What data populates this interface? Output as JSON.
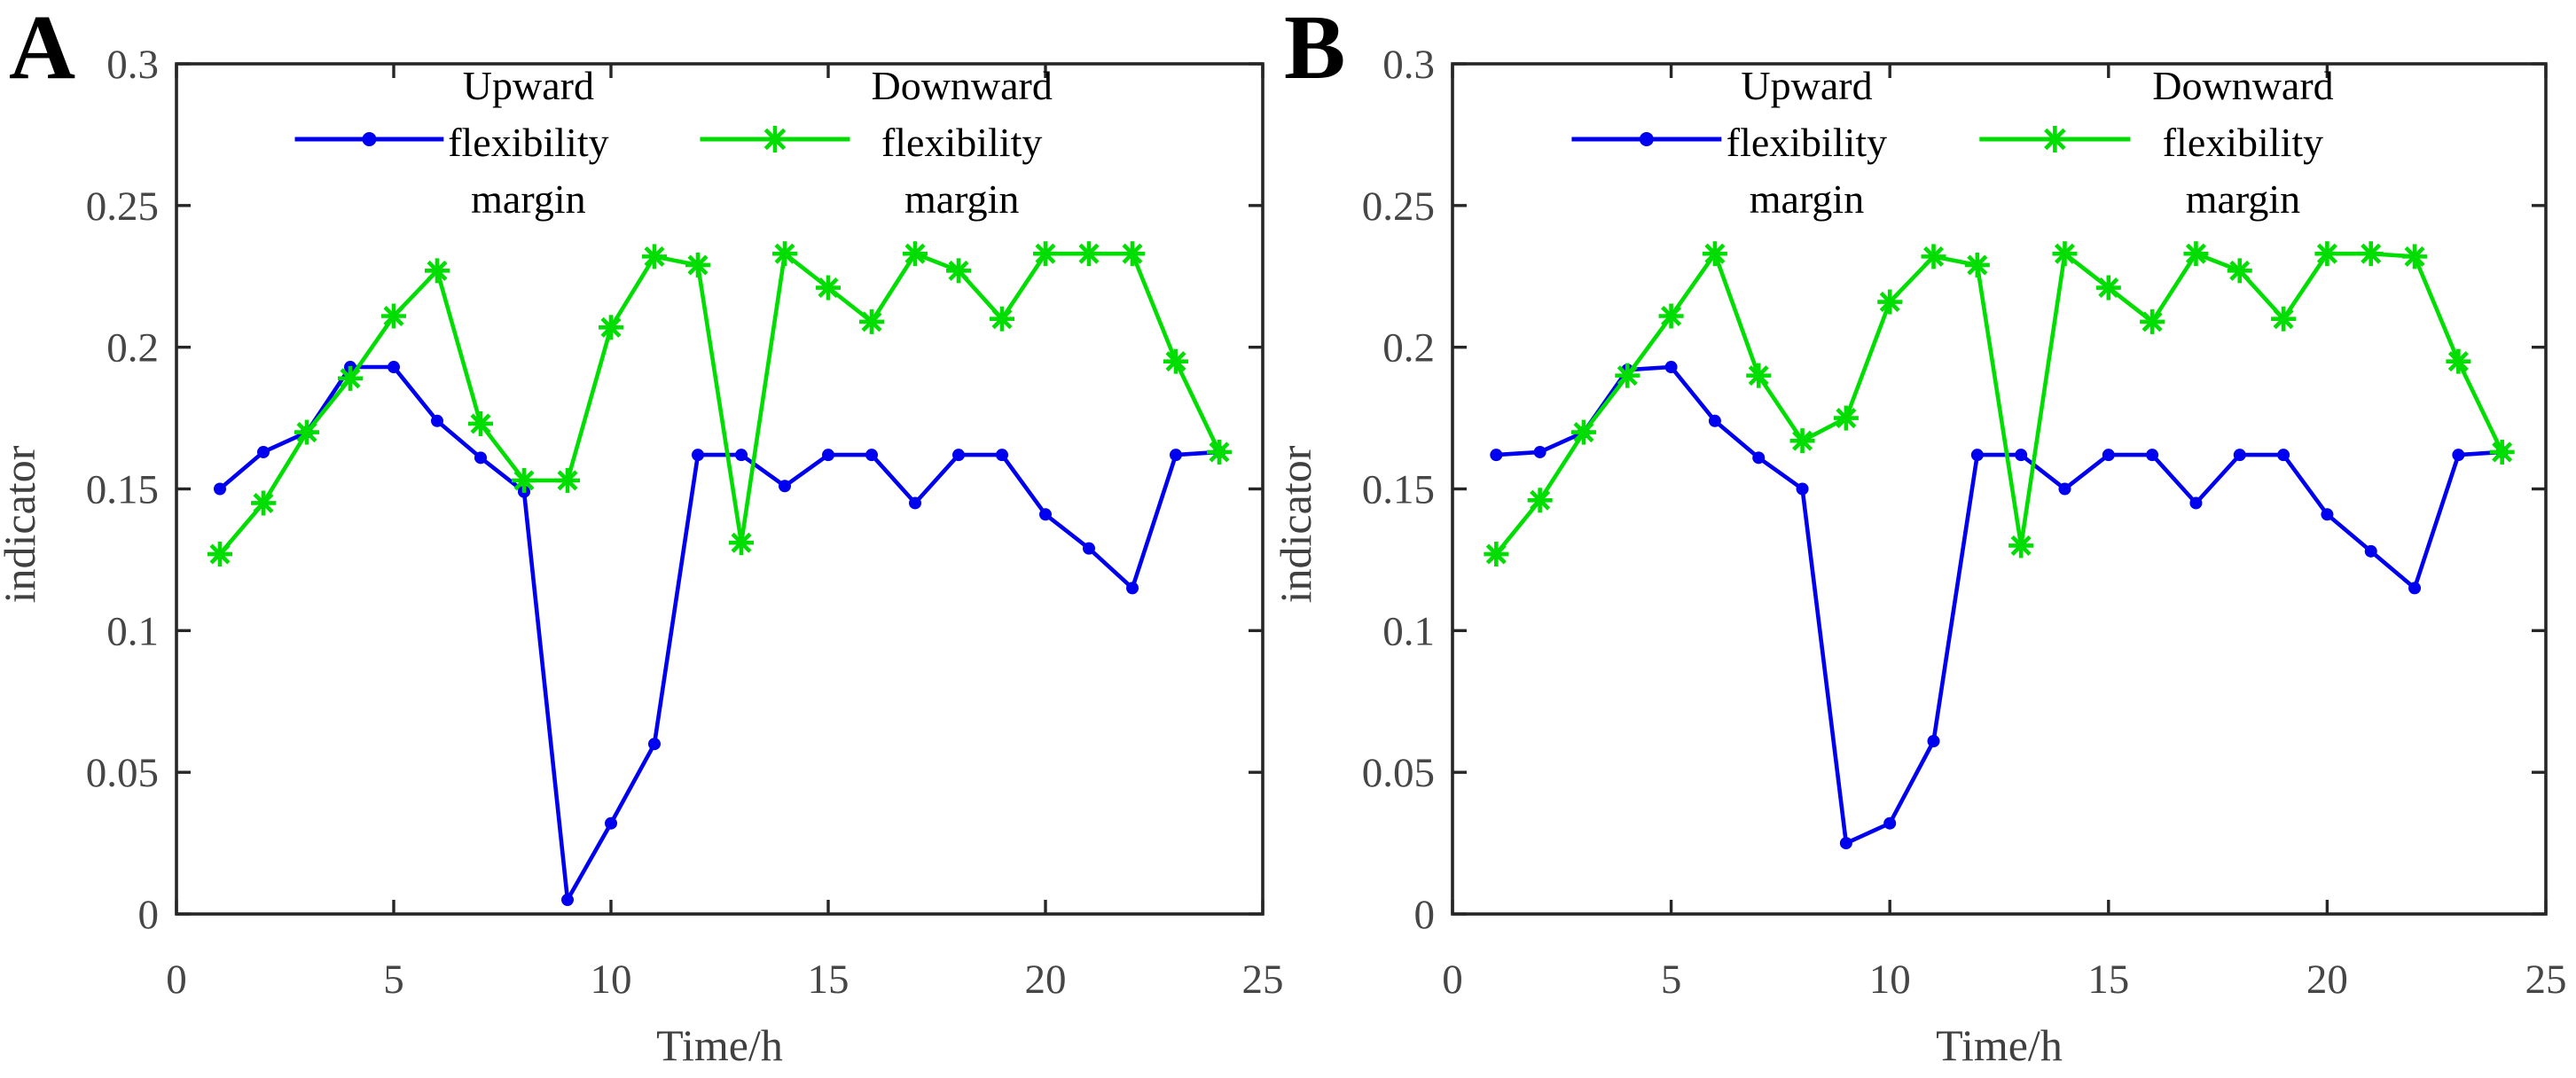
{
  "style": {
    "background": "#ffffff",
    "axis_color": "#262626",
    "tick_label_color": "#464646",
    "axis_label_color": "#404040",
    "upward_color": "#0000f0",
    "downward_color": "#00dd00",
    "legend_text_color": "#000000"
  },
  "chart_data": [
    {
      "id": "A",
      "panel_label": "A",
      "type": "line",
      "xlabel": "Time/h",
      "ylabel": "indicator",
      "xlim": [
        0,
        25
      ],
      "ylim": [
        0,
        0.3
      ],
      "xticks": [
        0,
        5,
        10,
        15,
        20,
        25
      ],
      "xtick_labels": [
        "0",
        "5",
        "10",
        "15",
        "20",
        "25"
      ],
      "yticks": [
        0,
        0.05,
        0.1,
        0.15,
        0.2,
        0.25,
        0.3
      ],
      "ytick_labels": [
        "0",
        "0.05",
        "0.1",
        "0.15",
        "0.2",
        "0.25",
        "0.3"
      ],
      "grid": false,
      "legend_position": "top-inside",
      "x": [
        1,
        2,
        3,
        4,
        5,
        6,
        7,
        8,
        9,
        10,
        11,
        12,
        13,
        14,
        15,
        16,
        17,
        18,
        19,
        20,
        21,
        22,
        23,
        24
      ],
      "series": [
        {
          "name": "Upward flexibility margin",
          "legend_lines": [
            "Upward",
            "flexibility",
            "margin"
          ],
          "color": "#0000f0",
          "marker": "dot",
          "values": [
            0.15,
            0.163,
            0.17,
            0.193,
            0.193,
            0.174,
            0.161,
            0.149,
            0.005,
            0.032,
            0.06,
            0.162,
            0.162,
            0.151,
            0.162,
            0.162,
            0.145,
            0.162,
            0.162,
            0.141,
            0.129,
            0.115,
            0.162,
            0.163
          ]
        },
        {
          "name": "Downward flexibility margin",
          "legend_lines": [
            "Downward",
            "flexibility",
            "margin"
          ],
          "color": "#00dd00",
          "marker": "asterisk",
          "values": [
            0.127,
            0.145,
            0.17,
            0.189,
            0.211,
            0.227,
            0.173,
            0.153,
            0.153,
            0.207,
            0.232,
            0.229,
            0.131,
            0.233,
            0.221,
            0.209,
            0.233,
            0.227,
            0.21,
            0.233,
            0.233,
            0.233,
            0.195,
            0.163
          ]
        }
      ]
    },
    {
      "id": "B",
      "panel_label": "B",
      "type": "line",
      "xlabel": "Time/h",
      "ylabel": "indicator",
      "xlim": [
        0,
        25
      ],
      "ylim": [
        0,
        0.3
      ],
      "xticks": [
        0,
        5,
        10,
        15,
        20,
        25
      ],
      "xtick_labels": [
        "0",
        "5",
        "10",
        "15",
        "20",
        "25"
      ],
      "yticks": [
        0,
        0.05,
        0.1,
        0.15,
        0.2,
        0.25,
        0.3
      ],
      "ytick_labels": [
        "0",
        "0.05",
        "0.1",
        "0.15",
        "0.2",
        "0.25",
        "0.3"
      ],
      "grid": false,
      "legend_position": "top-inside",
      "x": [
        1,
        2,
        3,
        4,
        5,
        6,
        7,
        8,
        9,
        10,
        11,
        12,
        13,
        14,
        15,
        16,
        17,
        18,
        19,
        20,
        21,
        22,
        23,
        24
      ],
      "series": [
        {
          "name": "Upward flexibility margin",
          "legend_lines": [
            "Upward",
            "flexibility",
            "margin"
          ],
          "color": "#0000f0",
          "marker": "dot",
          "values": [
            0.162,
            0.163,
            0.17,
            0.192,
            0.193,
            0.174,
            0.161,
            0.15,
            0.025,
            0.032,
            0.061,
            0.162,
            0.162,
            0.15,
            0.162,
            0.162,
            0.145,
            0.162,
            0.162,
            0.141,
            0.128,
            0.115,
            0.162,
            0.163
          ]
        },
        {
          "name": "Downward flexibility margin",
          "legend_lines": [
            "Downward",
            "flexibility",
            "margin"
          ],
          "color": "#00dd00",
          "marker": "asterisk",
          "values": [
            0.127,
            0.146,
            0.17,
            0.19,
            0.211,
            0.233,
            0.19,
            0.167,
            0.175,
            0.216,
            0.232,
            0.229,
            0.13,
            0.233,
            0.221,
            0.209,
            0.233,
            0.227,
            0.21,
            0.233,
            0.233,
            0.232,
            0.195,
            0.163
          ]
        }
      ]
    }
  ]
}
